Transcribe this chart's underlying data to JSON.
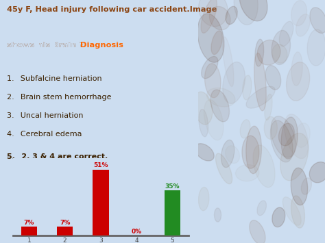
{
  "title_line1": "45y F, Head injury following car accident.Image",
  "title_line2_part1": "shows his Brain ? ",
  "title_line2_part2": "Diagnosis",
  "title_color1": "#8B4513",
  "title_color2": "#FF6600",
  "bg_color": "#ccddf0",
  "list_items": [
    "Subfalcine herniation",
    "Brain stem hemorrhage",
    "Uncal herniation",
    "Cerebral edema",
    "2, 3 & 4 are correct."
  ],
  "list_color": "#3a2000",
  "list_bold_item": 4,
  "bar_labels": [
    "1",
    "2",
    "3",
    "4",
    "5"
  ],
  "bar_values": [
    7,
    7,
    51,
    0,
    35
  ],
  "bar_colors": [
    "#cc0000",
    "#cc0000",
    "#cc0000",
    "#cc0000",
    "#228B22"
  ],
  "bar_label_color": "#cc0000",
  "bar_label_color_5": "#228B22",
  "right_panel_color": "#7a6560"
}
